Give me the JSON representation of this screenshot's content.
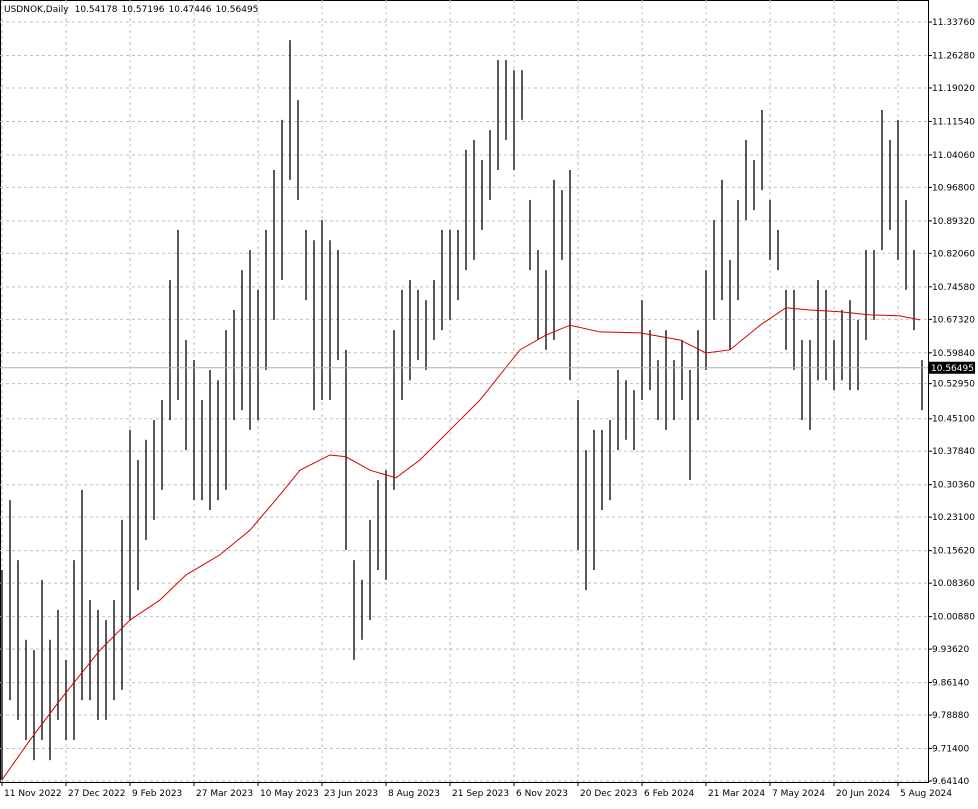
{
  "chart_data": {
    "type": "ohlc-bars",
    "title": "USDNOK,Daily",
    "last_bar": {
      "open": 10.54178,
      "high": 10.57196,
      "low": 10.47446,
      "close": 10.56495
    },
    "bar_color": "#000000",
    "xlim": [
      -1,
      463
    ],
    "ylim": [
      9.6392,
      11.3868
    ],
    "grid": true,
    "xticks": [
      {
        "value": 0,
        "label": "11 Nov 2022"
      },
      {
        "value": 32,
        "label": "27 Dec 2022"
      },
      {
        "value": 64,
        "label": "9 Feb 2023"
      },
      {
        "value": 96,
        "label": "27 Mar 2023"
      },
      {
        "value": 128,
        "label": "10 May 2023"
      },
      {
        "value": 160,
        "label": "23 Jun 2023"
      },
      {
        "value": 192,
        "label": "8 Aug 2023"
      },
      {
        "value": 224,
        "label": "21 Sep 2023"
      },
      {
        "value": 256,
        "label": "6 Nov 2023"
      },
      {
        "value": 288,
        "label": "20 Dec 2023"
      },
      {
        "value": 320,
        "label": "6 Feb 2024"
      },
      {
        "value": 352,
        "label": "21 Mar 2024"
      },
      {
        "value": 384,
        "label": "7 May 2024"
      },
      {
        "value": 416,
        "label": "20 Jun 2024"
      },
      {
        "value": 448,
        "label": "5 Aug 2024"
      }
    ],
    "yticks": [
      {
        "value": 11.3376,
        "label": "11.33760"
      },
      {
        "value": 11.2628,
        "label": "11.26280"
      },
      {
        "value": 11.1902,
        "label": "11.19020"
      },
      {
        "value": 11.1154,
        "label": "11.11540"
      },
      {
        "value": 11.0406,
        "label": "11.04060"
      },
      {
        "value": 10.968,
        "label": "10.96800"
      },
      {
        "value": 10.8932,
        "label": "10.89320"
      },
      {
        "value": 10.8206,
        "label": "10.82060"
      },
      {
        "value": 10.7458,
        "label": "10.74580"
      },
      {
        "value": 10.6732,
        "label": "10.67320"
      },
      {
        "value": 10.5984,
        "label": "10.59840"
      },
      {
        "value": 10.5295,
        "label": "10.52950"
      },
      {
        "value": 10.451,
        "label": "10.45100"
      },
      {
        "value": 10.3784,
        "label": "10.37840"
      },
      {
        "value": 10.3036,
        "label": "10.30360"
      },
      {
        "value": 10.231,
        "label": "10.23100"
      },
      {
        "value": 10.1562,
        "label": "10.15620"
      },
      {
        "value": 10.0836,
        "label": "10.08360"
      },
      {
        "value": 10.0088,
        "label": "10.00880"
      },
      {
        "value": 9.9362,
        "label": "9.93620"
      },
      {
        "value": 9.8614,
        "label": "9.86140"
      },
      {
        "value": 9.7888,
        "label": "9.78880"
      },
      {
        "value": 9.714,
        "label": "9.71400"
      },
      {
        "value": 9.6414,
        "label": "9.64140"
      }
    ],
    "bars": {
      "x": [
        0,
        4,
        8,
        12,
        16,
        20,
        24,
        28,
        32,
        36,
        40,
        44,
        48,
        52,
        56,
        60,
        64,
        68,
        72,
        76,
        80,
        84,
        88,
        92,
        96,
        100,
        104,
        108,
        112,
        116,
        120,
        124,
        128,
        132,
        136,
        140,
        144,
        148,
        152,
        156,
        160,
        164,
        168,
        172,
        176,
        180,
        184,
        188,
        192,
        196,
        200,
        204,
        208,
        212,
        216,
        220,
        224,
        228,
        232,
        236,
        240,
        244,
        248,
        252,
        256,
        260,
        264,
        268,
        272,
        276,
        280,
        284,
        288,
        292,
        296,
        300,
        304,
        308,
        312,
        316,
        320,
        324,
        328,
        332,
        336,
        340,
        344,
        348,
        352,
        356,
        360,
        364,
        368,
        372,
        376,
        380,
        384,
        388,
        392,
        396,
        400,
        404,
        408,
        412,
        416,
        420,
        424,
        428,
        432,
        436,
        440,
        444,
        448,
        452,
        456,
        460
      ],
      "high": [
        10.113,
        10.269,
        10.135,
        9.957,
        9.934,
        10.091,
        9.957,
        10.024,
        9.912,
        10.135,
        10.292,
        10.046,
        10.024,
        10.001,
        10.046,
        10.225,
        10.426,
        10.359,
        10.404,
        10.448,
        10.493,
        10.761,
        10.873,
        10.627,
        10.582,
        10.493,
        10.56,
        10.537,
        10.649,
        10.694,
        10.783,
        10.828,
        10.739,
        10.873,
        11.007,
        11.119,
        11.297,
        11.163,
        10.873,
        10.85,
        10.895,
        10.85,
        10.828,
        10.605,
        10.135,
        10.091,
        10.225,
        10.314,
        10.336,
        10.649,
        10.739,
        10.761,
        10.739,
        10.716,
        10.761,
        10.873,
        10.873,
        10.873,
        11.052,
        11.074,
        11.029,
        11.096,
        11.253,
        11.253,
        11.23,
        11.23,
        10.94,
        10.828,
        10.783,
        10.985,
        10.962,
        11.007,
        10.493,
        10.381,
        10.426,
        10.426,
        10.448,
        10.56,
        10.537,
        10.515,
        10.716,
        10.649,
        10.582,
        10.649,
        10.582,
        10.627,
        10.56,
        10.649,
        10.783,
        10.895,
        10.985,
        10.806,
        10.94,
        11.074,
        11.029,
        11.141,
        10.94,
        10.873,
        10.739,
        10.739,
        10.627,
        10.627,
        10.761,
        10.739,
        10.627,
        10.694,
        10.716,
        10.672,
        10.828,
        10.828,
        11.141,
        11.074,
        11.119,
        10.94,
        10.828,
        10.582
      ],
      "low": [
        9.644,
        9.822,
        9.778,
        9.733,
        9.688,
        9.733,
        9.688,
        9.778,
        9.733,
        9.733,
        9.822,
        9.822,
        9.778,
        9.778,
        9.822,
        9.845,
        10.001,
        10.068,
        10.18,
        10.225,
        10.292,
        10.448,
        10.493,
        10.381,
        10.269,
        10.269,
        10.247,
        10.269,
        10.292,
        10.448,
        10.47,
        10.426,
        10.448,
        10.56,
        10.672,
        10.761,
        10.985,
        10.94,
        10.716,
        10.47,
        10.493,
        10.493,
        10.582,
        10.158,
        9.912,
        9.957,
        10.001,
        10.113,
        10.091,
        10.292,
        10.493,
        10.537,
        10.582,
        10.56,
        10.627,
        10.649,
        10.672,
        10.716,
        10.783,
        10.806,
        10.873,
        10.94,
        11.007,
        11.074,
        11.007,
        11.119,
        10.783,
        10.627,
        10.605,
        10.627,
        10.806,
        10.537,
        10.158,
        10.068,
        10.113,
        10.247,
        10.269,
        10.381,
        10.404,
        10.381,
        10.493,
        10.515,
        10.448,
        10.426,
        10.448,
        10.493,
        10.314,
        10.448,
        10.56,
        10.672,
        10.716,
        10.605,
        10.716,
        10.895,
        10.917,
        10.962,
        10.806,
        10.783,
        10.605,
        10.56,
        10.448,
        10.426,
        10.537,
        10.537,
        10.515,
        10.537,
        10.515,
        10.515,
        10.627,
        10.672,
        10.828,
        10.873,
        10.806,
        10.739,
        10.649,
        10.47
      ]
    },
    "moving_average": {
      "color": "#d40000",
      "x": [
        0,
        14,
        29,
        49,
        64,
        79,
        92,
        109,
        124,
        139,
        149,
        164,
        172,
        184,
        197,
        209,
        224,
        239,
        259,
        272,
        284,
        299,
        319,
        339,
        352,
        364,
        379,
        392,
        404,
        419,
        434,
        449,
        459
      ],
      "values": [
        9.644,
        9.733,
        9.822,
        9.934,
        10.001,
        10.046,
        10.102,
        10.147,
        10.202,
        10.281,
        10.336,
        10.37,
        10.366,
        10.336,
        10.319,
        10.359,
        10.426,
        10.493,
        10.605,
        10.638,
        10.66,
        10.645,
        10.643,
        10.627,
        10.598,
        10.605,
        10.66,
        10.699,
        10.694,
        10.69,
        10.683,
        10.681,
        10.672
      ]
    }
  }
}
